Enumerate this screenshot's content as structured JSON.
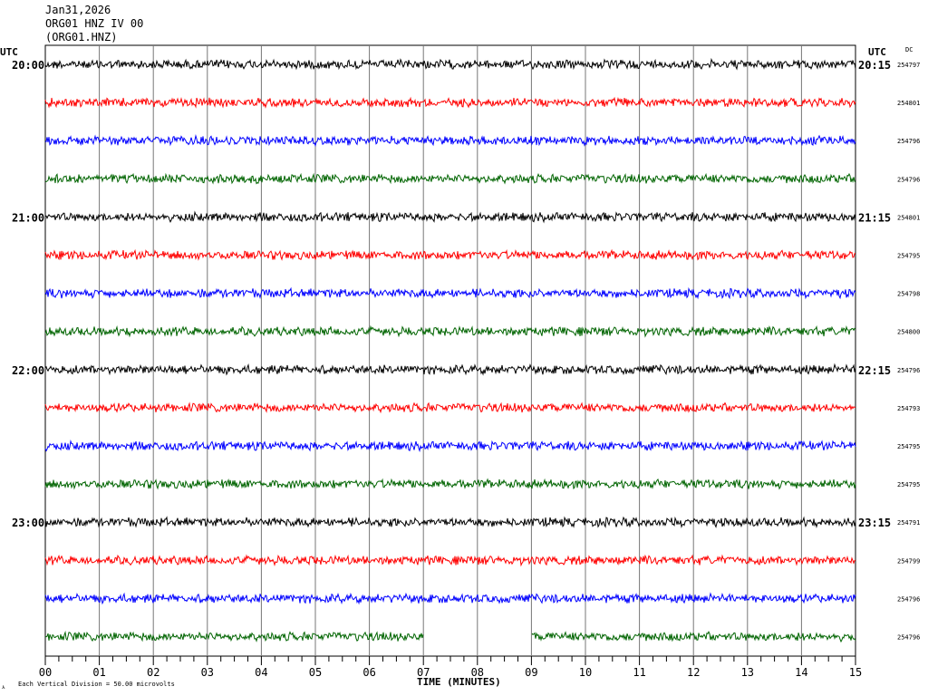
{
  "header": {
    "date": "Jan31,2026",
    "station": "ORG01 HNZ IV 00",
    "channel": "(ORG01.HNZ)"
  },
  "labels": {
    "utc_left": "UTC",
    "utc_right": "UTC",
    "dc": "DC",
    "xlabel": "TIME (MINUTES)",
    "scale_note": "Each Vertical Division =   50.00 microvolts"
  },
  "chart_data": {
    "type": "line",
    "title": "",
    "xlabel": "TIME (MINUTES)",
    "xlim": [
      0,
      15
    ],
    "x_ticks": [
      "00",
      "01",
      "02",
      "03",
      "04",
      "05",
      "06",
      "07",
      "08",
      "09",
      "10",
      "11",
      "12",
      "13",
      "14",
      "15"
    ],
    "left_time_labels": [
      "20:00",
      "",
      "",
      "",
      "21:00",
      "",
      "",
      "",
      "22:00",
      "",
      "",
      "",
      "23:00",
      "",
      "",
      ""
    ],
    "right_time_labels": [
      "20:15",
      "",
      "",
      "",
      "21:15",
      "",
      "",
      "",
      "22:15",
      "",
      "",
      "",
      "23:15",
      "",
      "",
      ""
    ],
    "dc_values": [
      "254797",
      "254801",
      "254796",
      "254796",
      "254801",
      "254795",
      "254798",
      "254800",
      "254796",
      "254793",
      "254795",
      "254795",
      "254791",
      "254799",
      "254796",
      "254796"
    ],
    "trace_colors": [
      "#000000",
      "#ff0000",
      "#0000ff",
      "#006400"
    ],
    "traces": 16,
    "gaps": [
      {
        "trace": 15,
        "from_minute": 7,
        "to_minute": 9
      }
    ],
    "grid": true
  }
}
